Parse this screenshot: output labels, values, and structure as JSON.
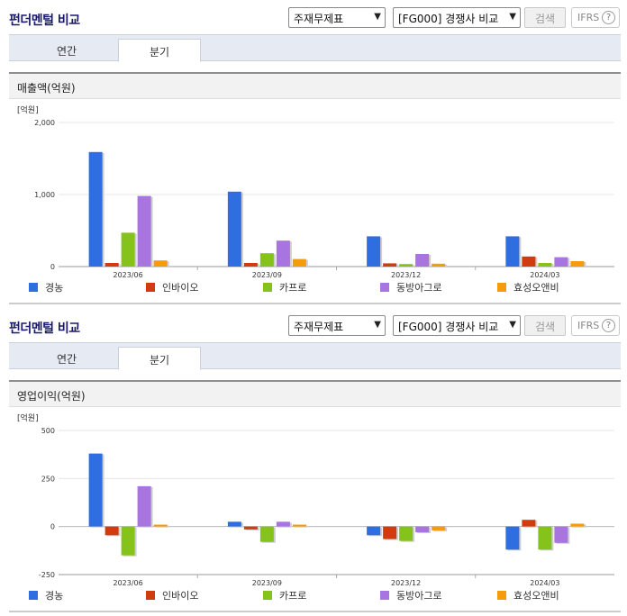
{
  "controls": {
    "title": "펀더멘털 비교",
    "select1": "주재무제표",
    "select2": "[FG000] 경쟁사 비교",
    "search_label": "검색",
    "ifrs_label": "IFRS",
    "help_glyph": "?",
    "tabs": [
      "연간",
      "분기"
    ],
    "active_tab": 1
  },
  "colors": {
    "series": [
      "#2f6ee0",
      "#d13b10",
      "#86c21c",
      "#a874e0",
      "#f59c0a"
    ]
  },
  "chart_data": [
    {
      "type": "bar",
      "title": "매출액(억원)",
      "unit_label": "[억원]",
      "categories": [
        "2023/06",
        "2023/09",
        "2023/12",
        "2024/03"
      ],
      "yticks": [
        "2,000",
        "1,000",
        "0"
      ],
      "ylim": [
        0,
        2000
      ],
      "legend_position": "bottom",
      "series": [
        {
          "name": "경농",
          "values": [
            1590,
            1040,
            420,
            420
          ]
        },
        {
          "name": "인바이오",
          "values": [
            50,
            50,
            45,
            140
          ]
        },
        {
          "name": "카프로",
          "values": [
            470,
            185,
            35,
            50
          ]
        },
        {
          "name": "동방아그로",
          "values": [
            980,
            360,
            175,
            130
          ]
        },
        {
          "name": "효성오앤비",
          "values": [
            85,
            105,
            40,
            75
          ]
        }
      ]
    },
    {
      "type": "bar",
      "title": "영업이익(억원)",
      "unit_label": "[억원]",
      "categories": [
        "2023/06",
        "2023/09",
        "2023/12",
        "2024/03"
      ],
      "yticks": [
        "500",
        "250",
        "0",
        "-250"
      ],
      "ylim": [
        -250,
        500
      ],
      "legend_position": "bottom",
      "series": [
        {
          "name": "경농",
          "values": [
            380,
            25,
            -45,
            -120
          ]
        },
        {
          "name": "인바이오",
          "values": [
            -45,
            -15,
            -65,
            35
          ]
        },
        {
          "name": "카프로",
          "values": [
            -150,
            -80,
            -75,
            -120
          ]
        },
        {
          "name": "동방아그로",
          "values": [
            210,
            25,
            -30,
            -85
          ]
        },
        {
          "name": "효성오앤비",
          "values": [
            10,
            10,
            -20,
            15
          ]
        }
      ]
    }
  ]
}
